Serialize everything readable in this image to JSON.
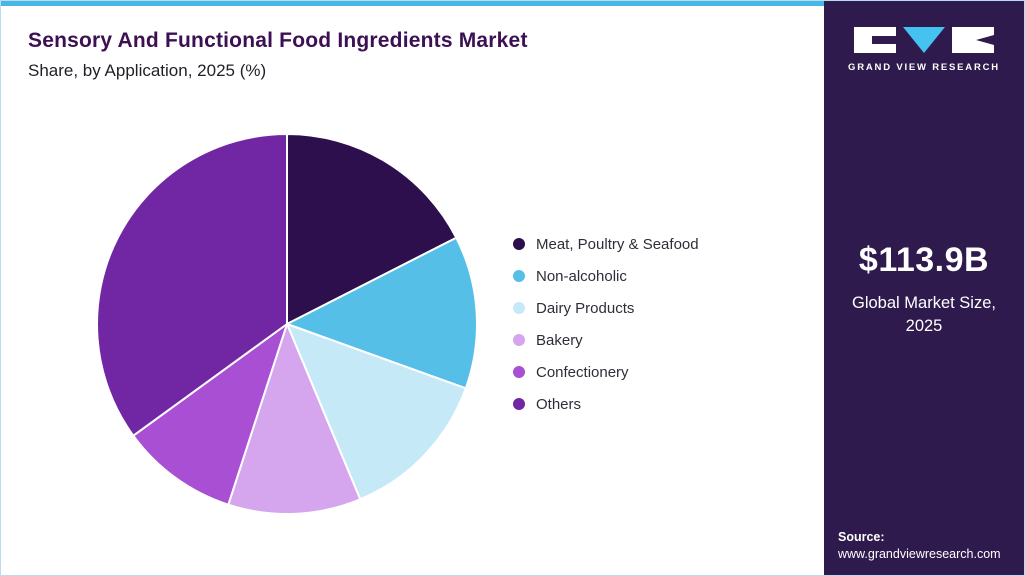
{
  "header": {
    "title": "Sensory And Functional Food Ingredients Market",
    "subtitle": "Share, by Application, 2025 (%)"
  },
  "sidebar": {
    "brand_name": "GRAND VIEW RESEARCH",
    "market_size_value": "$113.9B",
    "market_size_label_line1": "Global Market Size,",
    "market_size_label_line2": "2025",
    "source_label": "Source:",
    "source_url": "www.grandviewresearch.com",
    "background_color": "#2f1a4d",
    "accent_color": "#45c2f0"
  },
  "chart_data": {
    "type": "pie",
    "title": "Sensory And Functional Food Ingredients Market Share, by Application, 2025 (%)",
    "legend_position": "right",
    "start_angle_deg": 0,
    "direction": "clockwise",
    "slices": [
      {
        "label": "Meat, Poultry & Seafood",
        "value": 17.5,
        "color": "#2d0f4e"
      },
      {
        "label": "Non-alcoholic",
        "value": 13.0,
        "color": "#55bfe8"
      },
      {
        "label": "Dairy Products",
        "value": 13.2,
        "color": "#c6e9f8"
      },
      {
        "label": "Bakery",
        "value": 11.3,
        "color": "#d5a6ee"
      },
      {
        "label": "Confectionery",
        "value": 10.0,
        "color": "#a94fd4"
      },
      {
        "label": "Others",
        "value": 35.0,
        "color": "#7127a3"
      }
    ]
  }
}
